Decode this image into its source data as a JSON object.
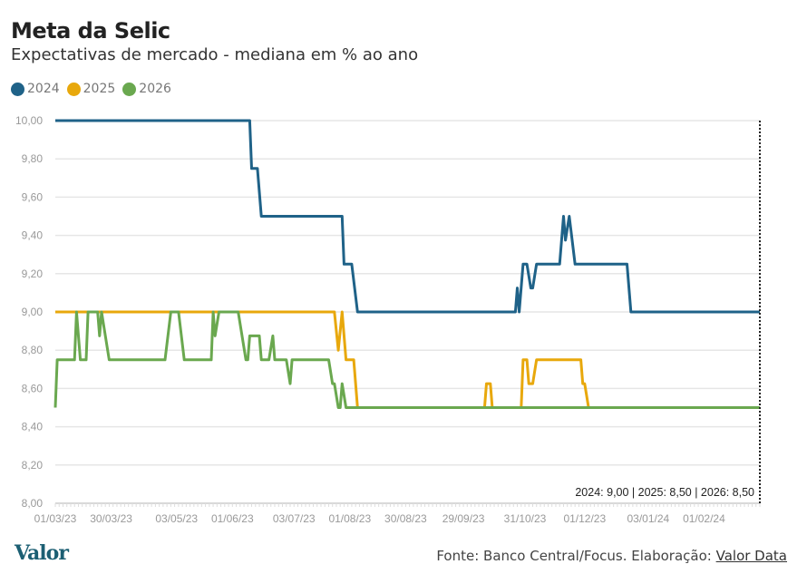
{
  "chart_data": {
    "type": "line",
    "title": "Meta da Selic",
    "subtitle": "Expectativas de mercado - mediana em % ao ano",
    "xlabel": "",
    "ylabel": "",
    "ylim": [
      8,
      10
    ],
    "xlim_days": [
      0,
      366
    ],
    "y_ticks": [
      "8,00",
      "8,20",
      "8,40",
      "8,60",
      "8,80",
      "9,00",
      "9,20",
      "9,40",
      "9,60",
      "9,80",
      "10,00"
    ],
    "x_ticks": [
      {
        "label": "01/03/23",
        "day": 0
      },
      {
        "label": "30/03/23",
        "day": 29
      },
      {
        "label": "03/05/23",
        "day": 63
      },
      {
        "label": "01/06/23",
        "day": 92
      },
      {
        "label": "03/07/23",
        "day": 124
      },
      {
        "label": "01/08/23",
        "day": 153
      },
      {
        "label": "30/08/23",
        "day": 182
      },
      {
        "label": "29/09/23",
        "day": 212
      },
      {
        "label": "31/10/23",
        "day": 244
      },
      {
        "label": "01/12/23",
        "day": 275
      },
      {
        "label": "03/01/24",
        "day": 308
      },
      {
        "label": "01/02/24",
        "day": 337
      }
    ],
    "grid": true,
    "legend_position": "top-left",
    "annotation": "2024: 9,00 | 2025: 8,50 | 2026: 8,50",
    "series": [
      {
        "name": "2024",
        "color": "#1f6288",
        "points": [
          [
            0,
            10
          ],
          [
            101,
            10
          ],
          [
            102,
            9.75
          ],
          [
            105,
            9.75
          ],
          [
            107,
            9.5
          ],
          [
            149,
            9.5
          ],
          [
            150,
            9.25
          ],
          [
            154,
            9.25
          ],
          [
            157,
            9.0
          ],
          [
            239,
            9.0
          ],
          [
            240,
            9.125
          ],
          [
            241,
            9.0
          ],
          [
            243,
            9.25
          ],
          [
            245,
            9.25
          ],
          [
            247,
            9.125
          ],
          [
            248,
            9.125
          ],
          [
            250,
            9.25
          ],
          [
            262,
            9.25
          ],
          [
            264,
            9.5
          ],
          [
            265,
            9.375
          ],
          [
            267,
            9.5
          ],
          [
            270,
            9.25
          ],
          [
            297,
            9.25
          ],
          [
            299,
            9.0
          ],
          [
            366,
            9.0
          ]
        ]
      },
      {
        "name": "2025",
        "color": "#e8a80c",
        "points": [
          [
            0,
            9.0
          ],
          [
            145,
            9.0
          ],
          [
            147,
            8.8
          ],
          [
            149,
            9.0
          ],
          [
            151,
            8.75
          ],
          [
            155,
            8.75
          ],
          [
            157,
            8.5
          ],
          [
            223,
            8.5
          ],
          [
            224,
            8.625
          ],
          [
            226,
            8.625
          ],
          [
            227,
            8.5
          ],
          [
            242,
            8.5
          ],
          [
            243,
            8.75
          ],
          [
            245,
            8.75
          ],
          [
            246,
            8.625
          ],
          [
            248,
            8.625
          ],
          [
            250,
            8.75
          ],
          [
            273,
            8.75
          ],
          [
            274,
            8.625
          ],
          [
            275,
            8.625
          ],
          [
            277,
            8.5
          ],
          [
            366,
            8.5
          ]
        ]
      },
      {
        "name": "2026",
        "color": "#6aa84f",
        "points": [
          [
            0,
            8.5
          ],
          [
            1,
            8.75
          ],
          [
            10,
            8.75
          ],
          [
            11,
            9.0
          ],
          [
            13,
            8.75
          ],
          [
            16,
            8.75
          ],
          [
            17,
            9.0
          ],
          [
            22,
            9.0
          ],
          [
            23,
            8.875
          ],
          [
            24,
            9.0
          ],
          [
            28,
            8.75
          ],
          [
            57,
            8.75
          ],
          [
            60,
            9.0
          ],
          [
            64,
            9.0
          ],
          [
            67,
            8.75
          ],
          [
            81,
            8.75
          ],
          [
            82,
            9.0
          ],
          [
            83,
            8.875
          ],
          [
            85,
            9.0
          ],
          [
            95,
            9.0
          ],
          [
            99,
            8.75
          ],
          [
            100,
            8.75
          ],
          [
            101,
            8.875
          ],
          [
            106,
            8.875
          ],
          [
            107,
            8.75
          ],
          [
            111,
            8.75
          ],
          [
            113,
            8.875
          ],
          [
            114,
            8.75
          ],
          [
            120,
            8.75
          ],
          [
            122,
            8.625
          ],
          [
            123,
            8.75
          ],
          [
            142,
            8.75
          ],
          [
            144,
            8.625
          ],
          [
            145,
            8.625
          ],
          [
            147,
            8.5
          ],
          [
            148,
            8.5
          ],
          [
            149,
            8.625
          ],
          [
            151,
            8.5
          ],
          [
            366,
            8.5
          ]
        ]
      }
    ]
  },
  "footer": {
    "source_prefix": "Fonte: Banco Central/Focus. Elaboração: ",
    "source_link": "Valor Data",
    "logo": "Valor"
  }
}
